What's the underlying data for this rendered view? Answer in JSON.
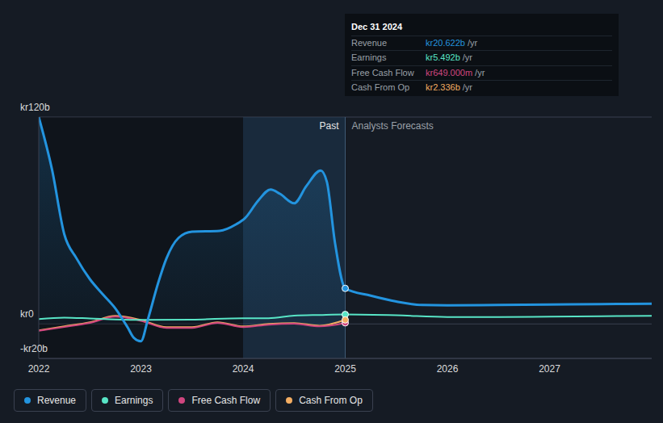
{
  "chart_data": {
    "type": "line",
    "xlim": [
      2022,
      2028
    ],
    "xticks": [
      2022,
      2023,
      2024,
      2025,
      2026,
      2027
    ],
    "ylim": [
      -20,
      120
    ],
    "yticks": [
      {
        "value": -20,
        "label": "-kr20b"
      },
      {
        "value": 0,
        "label": "kr0"
      },
      {
        "value": 120,
        "label": "kr120b"
      }
    ],
    "grid": true,
    "legend": "bottom",
    "highlight_range": [
      2024,
      2025
    ],
    "annotations": [
      {
        "text": "Past",
        "x": 2025
      },
      {
        "text": "Analysts Forecasts",
        "x": 2025
      }
    ],
    "tooltip": {
      "title": "Dec 31 2024",
      "rows": [
        {
          "label": "Revenue",
          "value": "kr20.622b",
          "unit": "/yr",
          "color": "#2394df"
        },
        {
          "label": "Earnings",
          "value": "kr5.492b",
          "unit": "/yr",
          "color": "#58e5c6"
        },
        {
          "label": "Free Cash Flow",
          "value": "kr649.000m",
          "unit": "/yr",
          "color": "#d0467f"
        },
        {
          "label": "Cash From Op",
          "value": "kr2.336b",
          "unit": "/yr",
          "color": "#f3ad62"
        }
      ]
    },
    "series": [
      {
        "name": "Revenue",
        "type": "area",
        "color": "#2394df",
        "x": [
          2022,
          2022.13,
          2022.25,
          2022.37,
          2022.5,
          2022.63,
          2022.75,
          2022.87,
          2022.93,
          2023,
          2023.07,
          2023.17,
          2023.25,
          2023.37,
          2023.5,
          2023.77,
          2023.93,
          2024.02,
          2024.15,
          2024.27,
          2024.36,
          2024.5,
          2024.62,
          2024.76,
          2024.82,
          2024.9,
          2025,
          2025.25,
          2025.5,
          2025.75,
          2026,
          2026.5,
          2027,
          2027.5,
          2028
        ],
        "values": [
          120,
          89.5,
          52,
          38,
          26,
          17,
          9,
          -2,
          -8,
          -10,
          3,
          24,
          38,
          50,
          53.5,
          54,
          57.7,
          61.4,
          71.7,
          78,
          75.5,
          70,
          80,
          89,
          82.5,
          47,
          20.622,
          16.4,
          13,
          11,
          10.8,
          11,
          11.3,
          11.5,
          11.7
        ]
      },
      {
        "name": "Earnings",
        "type": "line",
        "color": "#58e5c6",
        "x": [
          2022,
          2022.25,
          2022.5,
          2022.75,
          2023,
          2023.5,
          2024,
          2024.25,
          2024.5,
          2024.75,
          2025,
          2025.5,
          2026,
          2026.5,
          2027,
          2027.5,
          2028
        ],
        "values": [
          2.8,
          3.7,
          3.2,
          2.6,
          2.3,
          2.5,
          3.3,
          3.3,
          4.8,
          5.2,
          5.492,
          5.0,
          4.0,
          4.0,
          4.2,
          4.5,
          4.7
        ]
      },
      {
        "name": "Free Cash Flow",
        "type": "line",
        "color": "#d0467f",
        "x": [
          2022,
          2022.25,
          2022.5,
          2022.75,
          2023,
          2023.25,
          2023.5,
          2023.75,
          2024,
          2024.25,
          2024.5,
          2024.75,
          2025
        ],
        "values": [
          -4,
          -1.8,
          0.6,
          4.2,
          1.8,
          -2.3,
          -2.3,
          0.6,
          -1.8,
          -0.4,
          0.1,
          -1.4,
          0.649
        ]
      },
      {
        "name": "Cash From Op",
        "type": "line",
        "color": "#f3ad62",
        "x": [
          2022,
          2022.25,
          2022.5,
          2022.75,
          2023,
          2023.25,
          2023.5,
          2023.75,
          2024,
          2024.25,
          2024.5,
          2024.75,
          2025
        ],
        "values": [
          -3.7,
          -1.4,
          1,
          4.7,
          2.3,
          -1.9,
          -1.9,
          1,
          -1.4,
          0,
          0.5,
          -1,
          2.336
        ]
      }
    ]
  }
}
